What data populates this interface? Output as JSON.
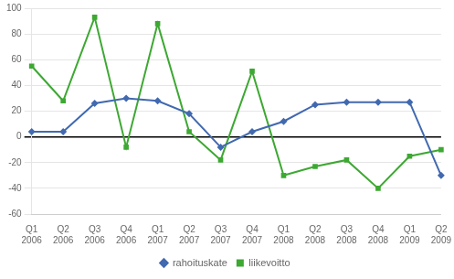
{
  "chart_data": {
    "type": "line",
    "categories": [
      "Q1\n2006",
      "Q2\n2006",
      "Q3\n2006",
      "Q4\n2006",
      "Q1\n2007",
      "Q2\n2007",
      "Q3\n2007",
      "Q4\n2007",
      "Q1\n2008",
      "Q2\n2008",
      "Q3\n2008",
      "Q4\n2008",
      "Q1\n2009",
      "Q2\n2009"
    ],
    "series": [
      {
        "name": "rahoituskate",
        "color": "#4169B0",
        "marker": "diamond",
        "values": [
          4,
          4,
          26,
          30,
          28,
          18,
          -8,
          4,
          12,
          25,
          27,
          27,
          27,
          -30
        ]
      },
      {
        "name": "liikevoitto",
        "color": "#3DA832",
        "marker": "square",
        "values": [
          55,
          28,
          93,
          -8,
          88,
          4,
          -18,
          51,
          -30,
          -23,
          -18,
          -40,
          -15,
          -10
        ]
      }
    ],
    "ylim": [
      -60,
      100
    ],
    "yticks": [
      -60,
      -40,
      -20,
      0,
      20,
      40,
      60,
      80,
      100
    ],
    "grid": true,
    "legend": "bottom"
  }
}
